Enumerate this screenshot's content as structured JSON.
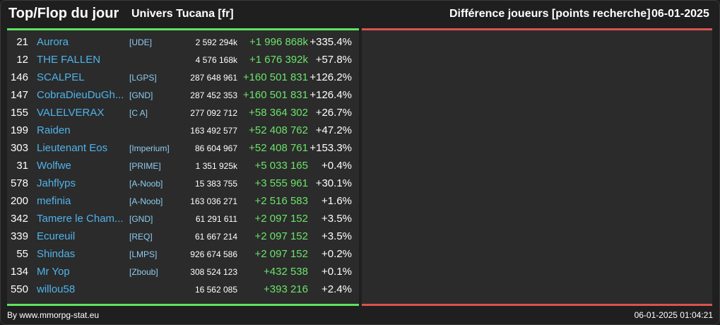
{
  "header": {
    "title": "Top/Flop du jour",
    "universe": "Univers Tucana [fr]",
    "metric": "Différence joueurs [points recherche]",
    "date": "06-01-2025"
  },
  "colors": {
    "accent_green": "#5fe35f",
    "accent_red": "#d9534f",
    "player_name": "#4fb3ea",
    "alliance": "#8ecdf2",
    "gain": "#6be36b"
  },
  "rows": [
    {
      "rank": "21",
      "name": "Aurora",
      "alliance": "[UDE]",
      "points": "2 592 294k",
      "diff": "+1 996 868k",
      "pct": "+335.4%"
    },
    {
      "rank": "12",
      "name": "THE FALLEN",
      "alliance": "",
      "points": "4 576 168k",
      "diff": "+1 676 392k",
      "pct": "+57.8%"
    },
    {
      "rank": "146",
      "name": "SCALPEL",
      "alliance": "[LGPS]",
      "points": "287 648 961",
      "diff": "+160 501 831",
      "pct": "+126.2%"
    },
    {
      "rank": "147",
      "name": "CobraDieuDuGh...",
      "alliance": "[GND]",
      "points": "287 452 353",
      "diff": "+160 501 831",
      "pct": "+126.4%"
    },
    {
      "rank": "155",
      "name": "VALELVERAX",
      "alliance": "[C A]",
      "points": "277 092 712",
      "diff": "+58 364 302",
      "pct": "+26.7%"
    },
    {
      "rank": "199",
      "name": "Raiden",
      "alliance": "",
      "points": "163 492 577",
      "diff": "+52 408 762",
      "pct": "+47.2%"
    },
    {
      "rank": "303",
      "name": "Lieutenant Eos",
      "alliance": "[Imperium]",
      "points": "86 604 967",
      "diff": "+52 408 761",
      "pct": "+153.3%"
    },
    {
      "rank": "31",
      "name": "Wolfwe",
      "alliance": "[PRIME]",
      "points": "1 351 925k",
      "diff": "+5 033 165",
      "pct": "+0.4%"
    },
    {
      "rank": "578",
      "name": "Jahflyps",
      "alliance": "[A-Noob]",
      "points": "15 383 755",
      "diff": "+3 555 961",
      "pct": "+30.1%"
    },
    {
      "rank": "200",
      "name": "mefinia",
      "alliance": "[A-Noob]",
      "points": "163 036 271",
      "diff": "+2 516 583",
      "pct": "+1.6%"
    },
    {
      "rank": "342",
      "name": "Tamere le Cham...",
      "alliance": "[GND]",
      "points": "61 291 611",
      "diff": "+2 097 152",
      "pct": "+3.5%"
    },
    {
      "rank": "339",
      "name": "Ecureuil",
      "alliance": "[REQ]",
      "points": "61 667 214",
      "diff": "+2 097 152",
      "pct": "+3.5%"
    },
    {
      "rank": "55",
      "name": "Shindas",
      "alliance": "[LMPS]",
      "points": "926 674 586",
      "diff": "+2 097 152",
      "pct": "+0.2%"
    },
    {
      "rank": "134",
      "name": "Mr Yop",
      "alliance": "[Zboub]",
      "points": "308 524 123",
      "diff": "+432 538",
      "pct": "+0.1%"
    },
    {
      "rank": "550",
      "name": "willou58",
      "alliance": "",
      "points": "16 562 085",
      "diff": "+393 216",
      "pct": "+2.4%"
    }
  ],
  "footer": {
    "source": "By www.mmorpg-stat.eu",
    "generated": "06-01-2025 01:04:21"
  }
}
